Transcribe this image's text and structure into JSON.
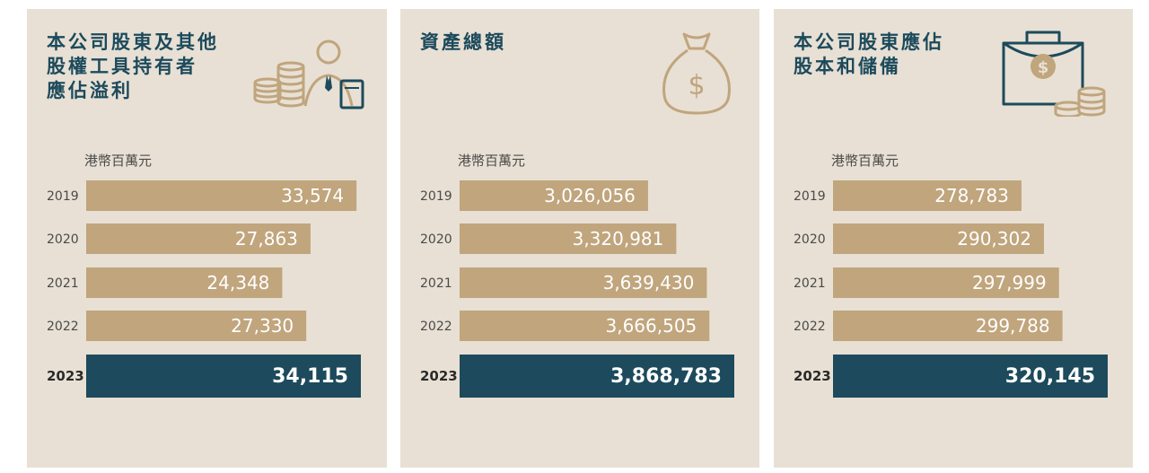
{
  "colors": {
    "panel_bg": "#e8e0d4",
    "bar": "#c0a57d",
    "bar_highlight": "#1d4a5c",
    "title": "#1c4a5c"
  },
  "panels": [
    {
      "title": "本公司股東及其他\n股權工具持有者\n應佔溢利",
      "unit": "港幣百萬元",
      "icon": "coins-businessman-icon"
    },
    {
      "title": "資產總額",
      "unit": "港幣百萬元",
      "icon": "money-bag-icon"
    },
    {
      "title": "本公司股東應佔\n股本和儲備",
      "unit": "港幣百萬元",
      "icon": "briefcase-coins-icon"
    }
  ],
  "chart_data": [
    {
      "type": "bar",
      "orientation": "horizontal",
      "title": "本公司股東及其他股權工具持有者應佔溢利",
      "unit": "港幣百萬元",
      "categories": [
        "2019",
        "2020",
        "2021",
        "2022",
        "2023"
      ],
      "values": [
        33574,
        27863,
        24348,
        27330,
        34115
      ],
      "labels": [
        "33,574",
        "27,863",
        "24,348",
        "27,330",
        "34,115"
      ],
      "highlight": "2023",
      "xlim": [
        0,
        34115
      ]
    },
    {
      "type": "bar",
      "orientation": "horizontal",
      "title": "資產總額",
      "unit": "港幣百萬元",
      "categories": [
        "2019",
        "2020",
        "2021",
        "2022",
        "2023"
      ],
      "values": [
        3026056,
        3320981,
        3639430,
        3666505,
        3868783
      ],
      "labels": [
        "3,026,056",
        "3,320,981",
        "3,639,430",
        "3,666,505",
        "3,868,783"
      ],
      "highlight": "2023",
      "xlim": [
        0,
        3868783
      ]
    },
    {
      "type": "bar",
      "orientation": "horizontal",
      "title": "本公司股東應佔股本和儲備",
      "unit": "港幣百萬元",
      "categories": [
        "2019",
        "2020",
        "2021",
        "2022",
        "2023"
      ],
      "values": [
        278783,
        290302,
        297999,
        299788,
        320145
      ],
      "labels": [
        "278,783",
        "290,302",
        "297,999",
        "299,788",
        "320,145"
      ],
      "highlight": "2023",
      "xlim": [
        0,
        320145
      ]
    }
  ]
}
